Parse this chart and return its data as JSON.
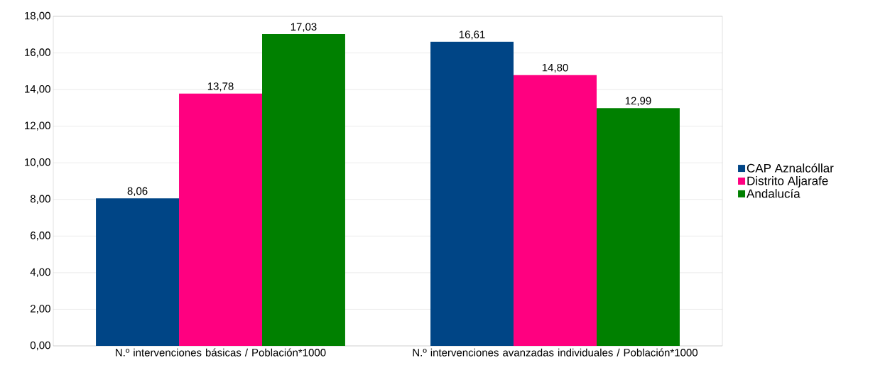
{
  "chart_data": {
    "type": "bar",
    "categories": [
      "N.º intervenciones básicas / Población*1000",
      "N.º intervenciones avanzadas individuales / Población*1000"
    ],
    "series": [
      {
        "name": "CAP Aznalcóllar",
        "color": "#004586",
        "values": [
          8.06,
          16.61
        ],
        "value_labels": [
          "8,06",
          "16,61"
        ]
      },
      {
        "name": "Distrito Aljarafe",
        "color": "#ff0080",
        "values": [
          13.78,
          14.8
        ],
        "value_labels": [
          "13,78",
          "14,80"
        ]
      },
      {
        "name": "Andalucía",
        "color": "#008000",
        "values": [
          17.03,
          12.99
        ],
        "value_labels": [
          "17,03",
          "12,99"
        ]
      }
    ],
    "ylim": [
      0,
      18
    ],
    "yticks": [
      {
        "value": 0,
        "label": "0,00"
      },
      {
        "value": 2,
        "label": "2,00"
      },
      {
        "value": 4,
        "label": "4,00"
      },
      {
        "value": 6,
        "label": "6,00"
      },
      {
        "value": 8,
        "label": "8,00"
      },
      {
        "value": 10,
        "label": "10,00"
      },
      {
        "value": 12,
        "label": "12,00"
      },
      {
        "value": 14,
        "label": "14,00"
      },
      {
        "value": 16,
        "label": "16,00"
      },
      {
        "value": 18,
        "label": "18,00"
      }
    ],
    "grid": "y",
    "legend": "right"
  }
}
